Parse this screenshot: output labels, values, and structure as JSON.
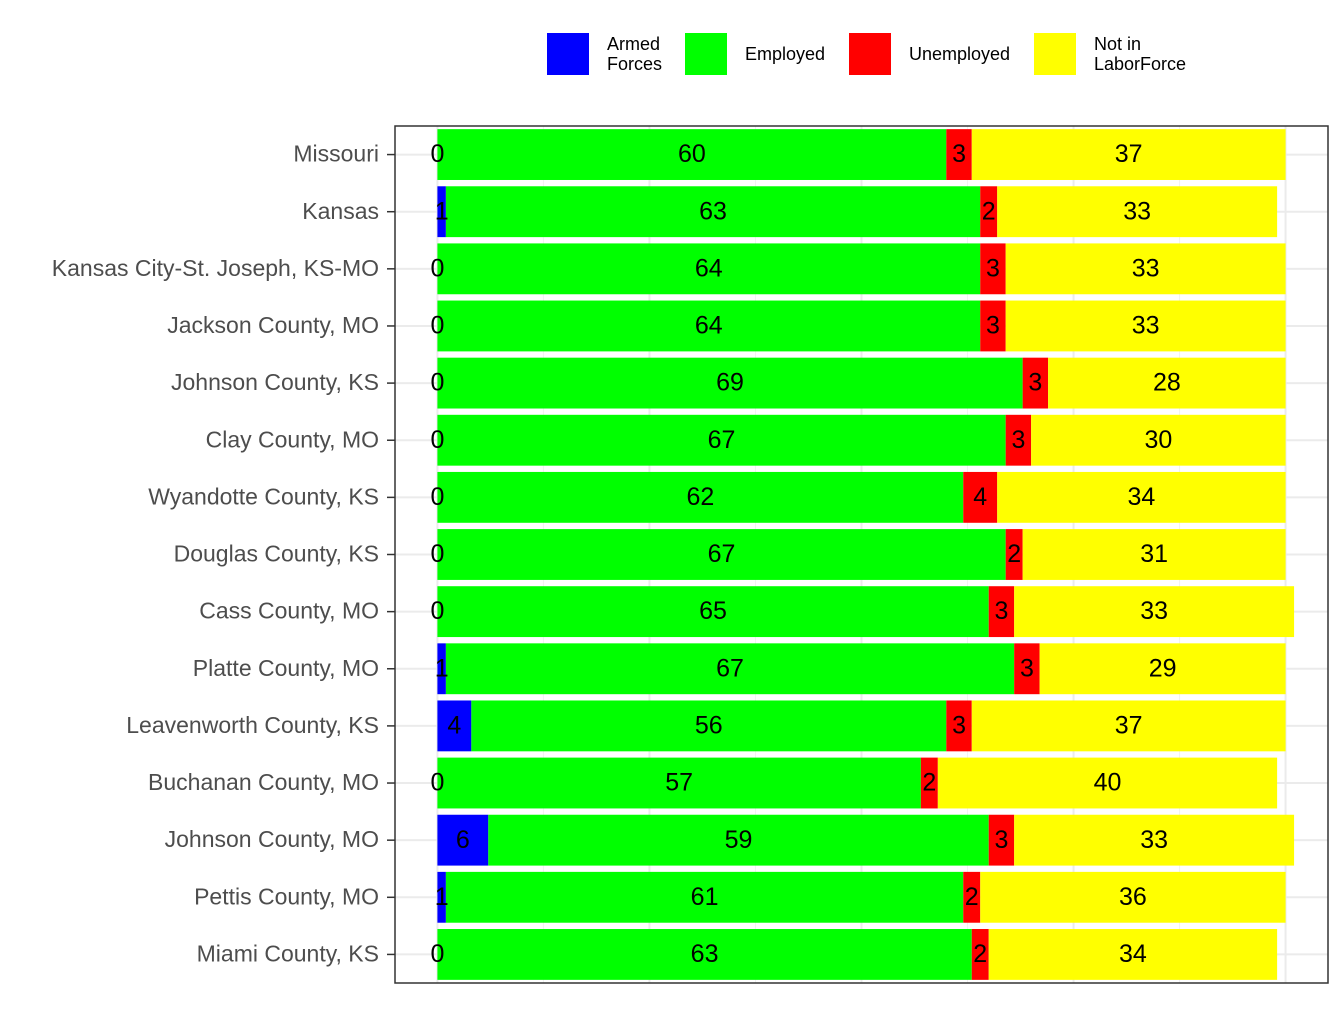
{
  "chart_data": {
    "type": "stacked-bar",
    "categories": [
      "Missouri",
      "Kansas",
      "Kansas City-St. Joseph, KS-MO",
      "Jackson County, MO",
      "Johnson County, KS",
      "Clay County, MO",
      "Wyandotte County, KS",
      "Douglas County, KS",
      "Cass County, MO",
      "Platte County, MO",
      "Leavenworth County, KS",
      "Buchanan County, MO",
      "Johnson County, MO",
      "Pettis County, MO",
      "Miami County, KS"
    ],
    "series": [
      {
        "name": "Armed\nForces",
        "color": "#0000ff",
        "values": [
          0,
          1,
          0,
          0,
          0,
          0,
          0,
          0,
          0,
          1,
          4,
          0,
          6,
          1,
          0
        ]
      },
      {
        "name": "Employed",
        "color": "#00ff00",
        "values": [
          60,
          63,
          64,
          64,
          69,
          67,
          62,
          67,
          65,
          67,
          56,
          57,
          59,
          61,
          63
        ]
      },
      {
        "name": "Unemployed",
        "color": "#ff0000",
        "values": [
          3,
          2,
          3,
          3,
          3,
          3,
          4,
          2,
          3,
          3,
          3,
          2,
          3,
          2,
          2
        ]
      },
      {
        "name": "Not in\nLaborForce",
        "color": "#ffff00",
        "values": [
          37,
          33,
          33,
          33,
          28,
          30,
          34,
          31,
          33,
          29,
          37,
          40,
          33,
          36,
          34
        ]
      }
    ],
    "xlim": [
      -5,
      105
    ],
    "xticks": [
      0,
      25,
      50,
      75,
      100
    ],
    "grid": true
  }
}
